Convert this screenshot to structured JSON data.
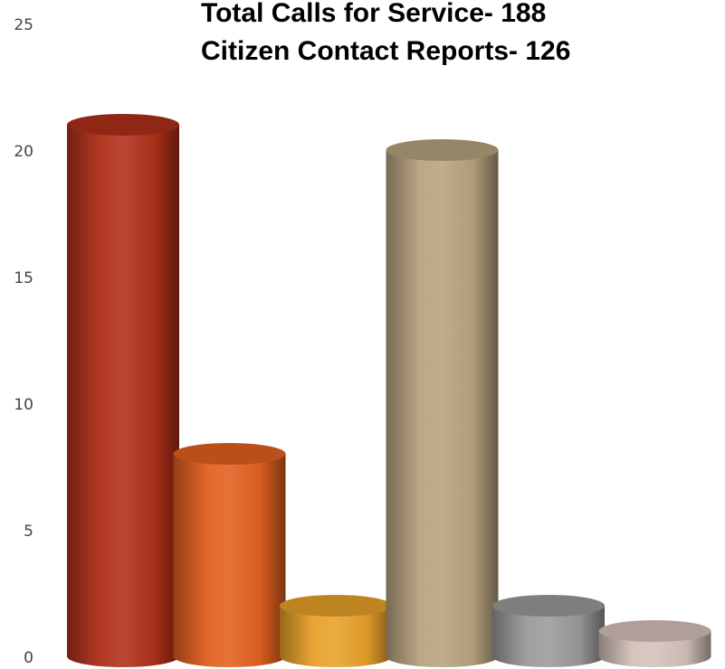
{
  "chart_data": {
    "type": "bar",
    "title_lines": [
      "Total Calls for Service- 188",
      "Citizen Contact Reports- 126"
    ],
    "xlabel": "",
    "ylabel": "",
    "ylim": [
      0,
      25
    ],
    "yticks": [
      "0",
      "5",
      "10",
      "15",
      "20",
      "25"
    ],
    "grid": false,
    "legend": "none",
    "values": [
      21,
      8,
      2,
      20,
      2,
      1
    ],
    "colors": [
      "#b0301a",
      "#e2601e",
      "#e8a12a",
      "#b8a27f",
      "#9a9a9a",
      "#d5c1ba"
    ]
  }
}
